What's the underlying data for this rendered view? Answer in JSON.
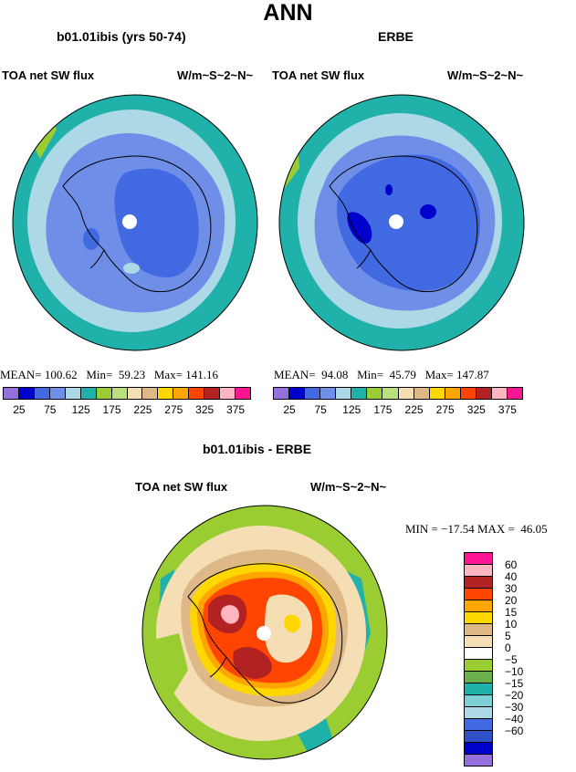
{
  "title": "ANN",
  "panels": [
    {
      "title": "b01.01ibis (yrs 50-74)",
      "left_label": "TOA net SW flux",
      "right_label": "W/m~S~2~N~",
      "stats": {
        "mean_label": "MEAN=",
        "mean": "100.62",
        "min_label": "Min=",
        "min": "59.23",
        "max_label": "Max=",
        "max": "141.16"
      }
    },
    {
      "title": "ERBE",
      "left_label": "TOA net SW flux",
      "right_label": "W/m~S~2~N~",
      "stats": {
        "mean_label": "MEAN=",
        "mean": "94.08",
        "min_label": "Min=",
        "min": "45.79",
        "max_label": "Max=",
        "max": "147.87"
      }
    }
  ],
  "horizontal_colorbar": {
    "colors": [
      "#9370db",
      "#0000cd",
      "#4169e1",
      "#6e8ee8",
      "#add8e6",
      "#20b2aa",
      "#9acd32",
      "#b9e07a",
      "#f5deb3",
      "#deb887",
      "#ffd700",
      "#ffa500",
      "#ff4500",
      "#b22222",
      "#ffb6c1",
      "#ff1493"
    ],
    "tick_labels": [
      "25",
      "75",
      "125",
      "175",
      "225",
      "275",
      "325",
      "375"
    ]
  },
  "diff_panel": {
    "title": "b01.01ibis - ERBE",
    "left_label": "TOA net SW flux",
    "right_label": "W/m~S~2~N~",
    "stats": {
      "min_label": "MIN =",
      "min": "−17.54",
      "max_label": "MAX =",
      "max": "46.05"
    }
  },
  "vertical_colorbar": {
    "colors": [
      "#ff1493",
      "#ffb6c1",
      "#b22222",
      "#ff4500",
      "#ffa500",
      "#ffd700",
      "#deb887",
      "#f5deb3",
      "#ffffff",
      "#9acd32",
      "#6ab04c",
      "#20b2aa",
      "#7ecfd4",
      "#add8e6",
      "#4169e1",
      "#3050c8",
      "#0000cd",
      "#9370db"
    ],
    "tick_labels": [
      "60",
      "40",
      "30",
      "20",
      "15",
      "10",
      "5",
      "0",
      "−5",
      "−10",
      "−15",
      "−20",
      "−30",
      "−40",
      "−60"
    ]
  },
  "colors": {
    "ocean_teal": "#20b2aa",
    "light_blue": "#add8e6",
    "mid_blue": "#6e8ee8",
    "blue": "#4169e1",
    "dark_blue": "#0000cd",
    "green": "#9acd32",
    "wheat": "#f5deb3",
    "tan": "#deb887",
    "gold": "#ffd700",
    "orange": "#ffa500",
    "red_orange": "#ff4500",
    "dark_red": "#b22222",
    "pink": "#ffb6c1"
  }
}
